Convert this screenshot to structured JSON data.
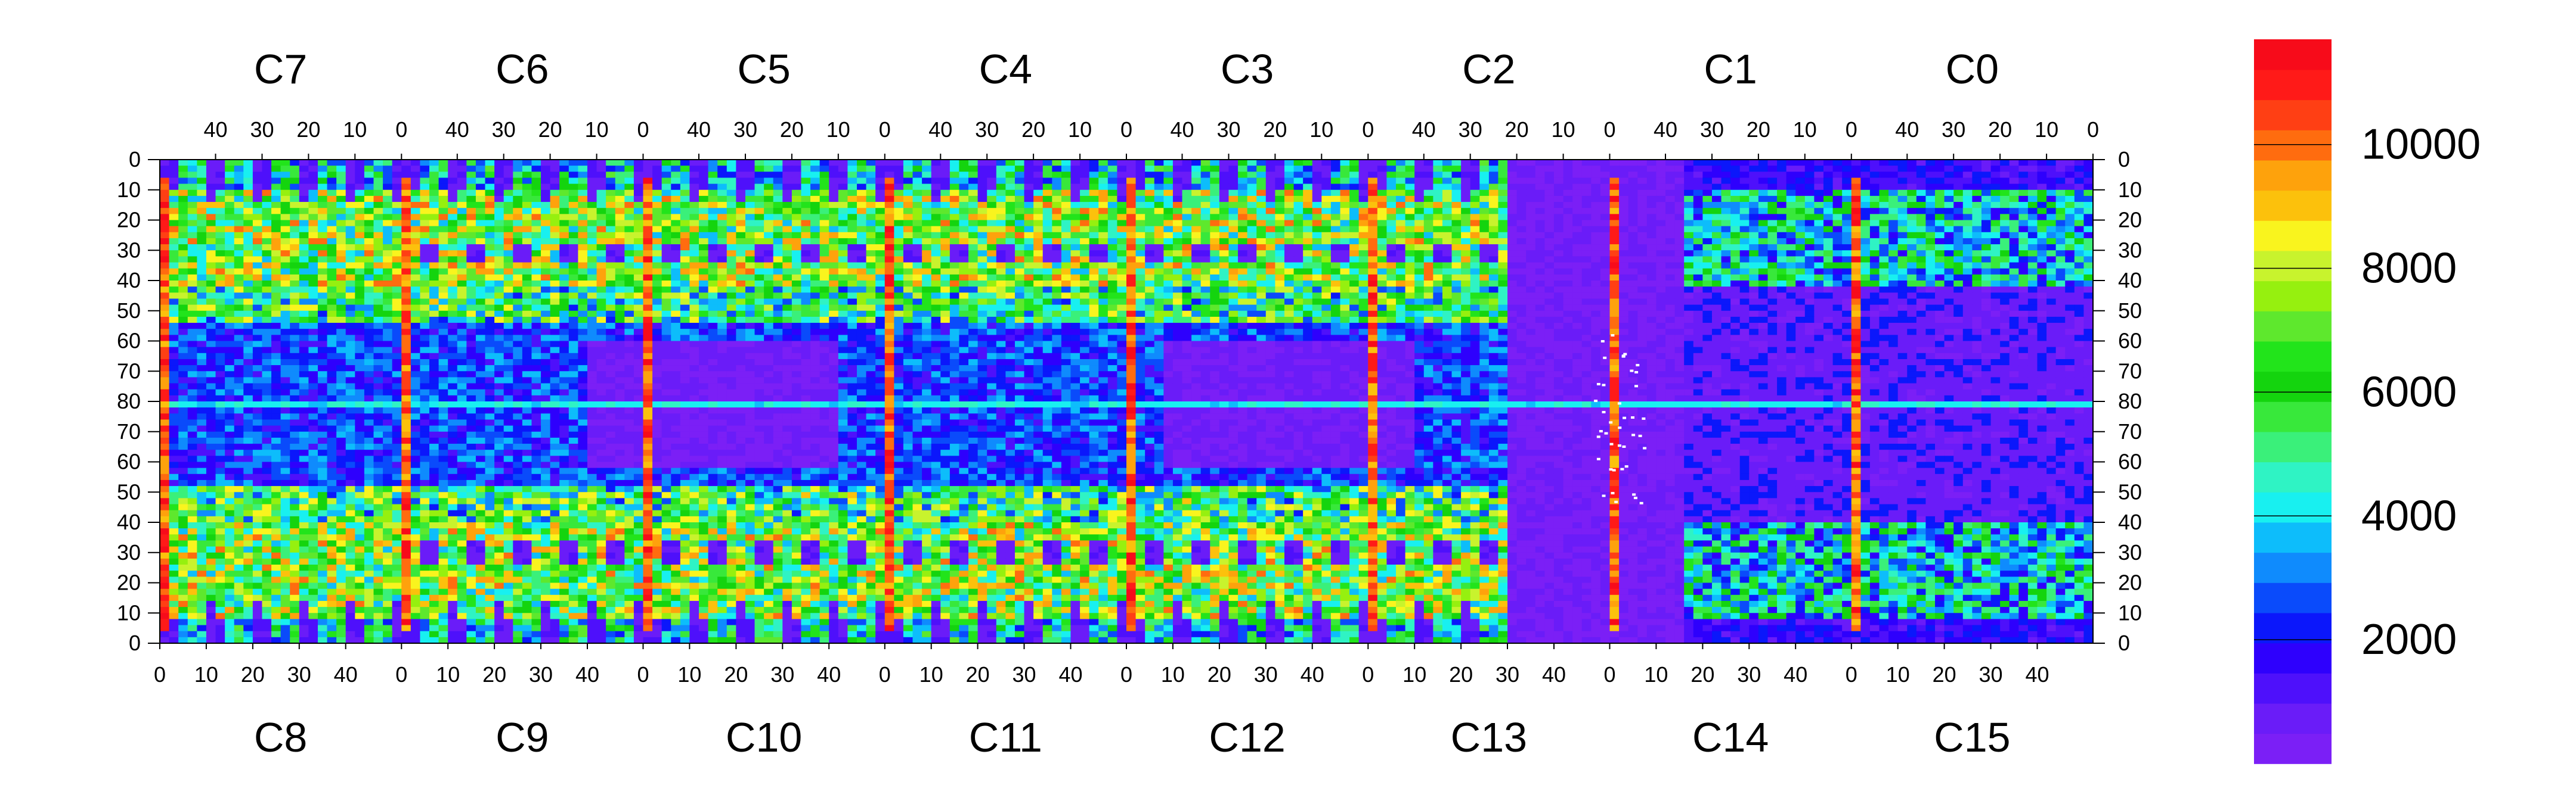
{
  "chart_data": {
    "type": "heatmap",
    "title": "",
    "xlabel": "",
    "ylabel": "",
    "grid": false,
    "top_chip_labels": [
      "C7",
      "C6",
      "C5",
      "C4",
      "C3",
      "C2",
      "C1",
      "C0"
    ],
    "bottom_chip_labels": [
      "C8",
      "C9",
      "C10",
      "C11",
      "C12",
      "C13",
      "C14",
      "C15"
    ],
    "top_tick_labels": [
      "40",
      "30",
      "20",
      "10",
      "0"
    ],
    "bottom_tick_labels": [
      "0",
      "10",
      "20",
      "30",
      "40"
    ],
    "left_tick_labels": [
      "0",
      "10",
      "20",
      "30",
      "40",
      "50",
      "60",
      "70",
      "80",
      "70",
      "60",
      "50",
      "40",
      "30",
      "20",
      "10",
      "0"
    ],
    "right_tick_labels": [
      "0",
      "10",
      "20",
      "30",
      "40",
      "50",
      "60",
      "70",
      "80",
      "70",
      "60",
      "50",
      "40",
      "30",
      "20",
      "10",
      "0"
    ],
    "columns_per_chip": 52,
    "rows_per_half": 80,
    "colorbar": {
      "min": 0,
      "max": 11700,
      "tick_values": [
        2000,
        4000,
        6000,
        8000,
        10000
      ],
      "tick_labels": [
        "2000",
        "4000",
        "6000",
        "8000",
        "10000"
      ],
      "palette": [
        "#7b1ff6",
        "#6a1cf8",
        "#4e10fb",
        "#2e00fd",
        "#0b17fb",
        "#0a4bfb",
        "#0f8bfd",
        "#0dbdfb",
        "#18f0f0",
        "#2ff3c4",
        "#3af07a",
        "#38e83b",
        "#14d40e",
        "#22e41b",
        "#5ee82d",
        "#96f00f",
        "#c8f32d",
        "#f9f41e",
        "#fcc10c",
        "#fea20c",
        "#ff6c0f",
        "#ff3f14",
        "#ff1a18",
        "#f70b1a"
      ]
    },
    "features": {
      "hot_columns_x": [
        0,
        52,
        104,
        156,
        208,
        260,
        312,
        364,
        416
      ],
      "fiducial_row": 80,
      "low_occupancy_chip": "C2/C13",
      "low_occupancy_center_value": 300,
      "dense_region_value": 7000,
      "edge_region_value": 1500
    }
  },
  "colors": {
    "background": "#ffffff",
    "frame": "#000000"
  }
}
